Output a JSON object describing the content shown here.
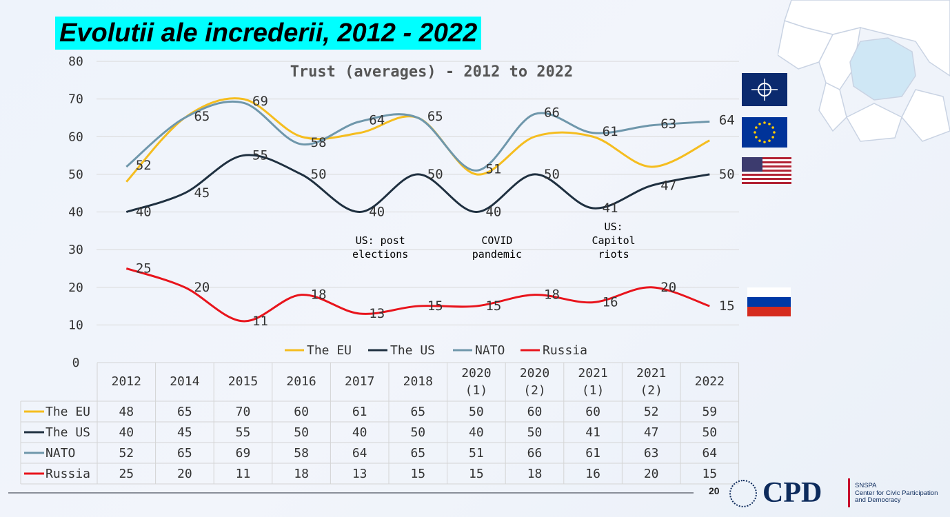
{
  "slide": {
    "title": "Evolutii ale increderii, 2012 - 2022",
    "page_number": "20"
  },
  "logo": {
    "name": "CPD",
    "org_line1": "SNSPA",
    "org_line2": "Center for Civic Participation",
    "org_line3": "and Democracy"
  },
  "flags": [
    "nato-flag-icon",
    "eu-flag-icon",
    "us-flag-icon",
    "russia-flag-icon"
  ],
  "chart_data": {
    "type": "line",
    "title": "Trust (averages) - 2012 to 2022",
    "ylim": [
      0,
      80
    ],
    "yticks": [
      0,
      10,
      20,
      30,
      40,
      50,
      60,
      70,
      80
    ],
    "categories": [
      "2012",
      "2014",
      "2015",
      "2016",
      "2017",
      "2018",
      "2020\n(1)",
      "2020\n(2)",
      "2021\n(1)",
      "2021\n(2)",
      "2022"
    ],
    "series": [
      {
        "name": "The EU",
        "color": "#f5bd1f",
        "values": [
          48,
          65,
          70,
          60,
          61,
          65,
          50,
          60,
          60,
          52,
          59
        ]
      },
      {
        "name": "The US",
        "color": "#1f3040",
        "values": [
          40,
          45,
          55,
          50,
          40,
          50,
          40,
          50,
          41,
          47,
          50
        ]
      },
      {
        "name": "NATO",
        "color": "#6f97ab",
        "values": [
          52,
          65,
          69,
          58,
          64,
          65,
          51,
          66,
          61,
          63,
          64
        ]
      },
      {
        "name": "Russia",
        "color": "#e8141c",
        "values": [
          25,
          20,
          11,
          18,
          13,
          15,
          15,
          18,
          16,
          20,
          15
        ]
      }
    ],
    "annotations": [
      {
        "category_index": 4,
        "text": [
          "US: post",
          "elections"
        ]
      },
      {
        "category_index": 6,
        "text": [
          "COVID",
          "pandemic"
        ]
      },
      {
        "category_index": 8,
        "text": [
          "US:",
          "Capitol",
          "riots"
        ]
      }
    ],
    "legend": "bottom",
    "grid": true,
    "data_table": true
  }
}
